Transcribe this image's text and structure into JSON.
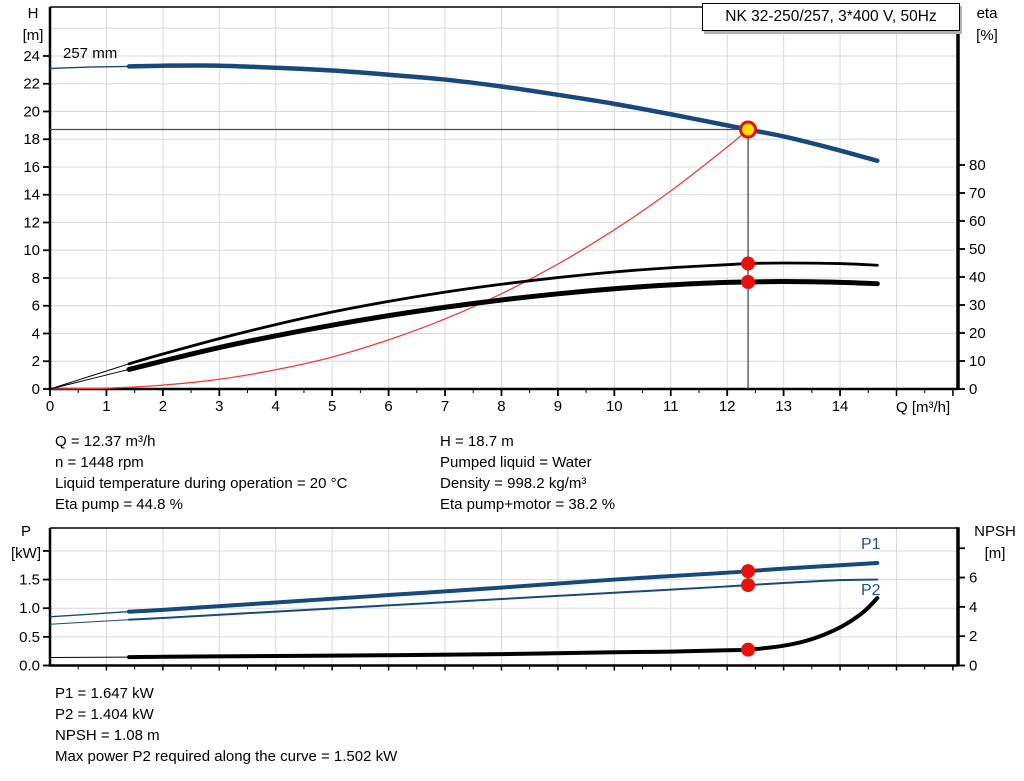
{
  "title_box": {
    "label": "NK 32-250/257, 3*400 V, 50Hz"
  },
  "info_top": {
    "left": [
      "Q = 12.37 m³/h",
      "n = 1448 rpm",
      "Liquid temperature during operation = 20 °C",
      "Eta pump = 44.8 %"
    ],
    "right": [
      "H = 18.7 m",
      "Pumped liquid = Water",
      "Density = 998.2 kg/m³",
      "Eta pump+motor = 38.2 %"
    ]
  },
  "info_bottom": [
    "P1 = 1.647 kW",
    "P2 = 1.404 kW",
    "NPSH = 1.08 m",
    "Max power P2 required along the curve = 1.502 kW"
  ],
  "colors": {
    "curve_blue": "#17497d",
    "label_blue": "#1c548f",
    "dot_red": "#e8110c",
    "system_red": "#f03c3c",
    "duty_yellow": "#ffe000",
    "grid": "#d9d9d9",
    "guide": "#4d4d4d",
    "axis": "#000000"
  },
  "chart_data": [
    {
      "type": "line",
      "title": "NK 32-250/257, 3*400 V, 50Hz",
      "annotation": "257 mm",
      "x_axis": {
        "label": "Q [m³/h]",
        "min": 0,
        "max": 16.09,
        "minor_step": 0.5,
        "ticks": [
          {
            "v": 0,
            "l": "0"
          },
          {
            "v": 1,
            "l": "1"
          },
          {
            "v": 2,
            "l": "2"
          },
          {
            "v": 3,
            "l": "3"
          },
          {
            "v": 4,
            "l": "4"
          },
          {
            "v": 5,
            "l": "5"
          },
          {
            "v": 6,
            "l": "6"
          },
          {
            "v": 7,
            "l": "7"
          },
          {
            "v": 8,
            "l": "8"
          },
          {
            "v": 9,
            "l": "9"
          },
          {
            "v": 10,
            "l": "10"
          },
          {
            "v": 11,
            "l": "11"
          },
          {
            "v": 12,
            "l": "12"
          },
          {
            "v": 13,
            "l": "13"
          },
          {
            "v": 14,
            "l": "14"
          }
        ],
        "ticks_unlabeled": [
          15,
          16
        ],
        "grid": [
          1,
          2,
          3,
          4,
          5,
          6,
          7,
          8,
          9,
          10,
          11,
          12,
          13,
          14,
          15
        ]
      },
      "y_left": {
        "symbol": "H",
        "unit": "[m]",
        "min": 0,
        "max": 27.53,
        "ticks": [
          {
            "v": 0,
            "l": "0"
          },
          {
            "v": 2,
            "l": "2"
          },
          {
            "v": 4,
            "l": "4"
          },
          {
            "v": 6,
            "l": "6"
          },
          {
            "v": 8,
            "l": "8"
          },
          {
            "v": 10,
            "l": "10"
          },
          {
            "v": 12,
            "l": "12"
          },
          {
            "v": 14,
            "l": "14"
          },
          {
            "v": 16,
            "l": "16"
          },
          {
            "v": 18,
            "l": "18"
          },
          {
            "v": 20,
            "l": "20"
          },
          {
            "v": 22,
            "l": "22"
          },
          {
            "v": 24,
            "l": "24"
          }
        ],
        "grid": [
          2,
          4,
          6,
          8,
          10,
          12,
          14,
          16,
          18,
          20,
          22,
          24,
          26
        ]
      },
      "y_right": {
        "symbol": "eta",
        "unit": "[%]",
        "min": 0,
        "max": 136.43,
        "ticks": [
          {
            "v": 0,
            "l": "0"
          },
          {
            "v": 10,
            "l": "10"
          },
          {
            "v": 20,
            "l": "20"
          },
          {
            "v": 30,
            "l": "30"
          },
          {
            "v": 40,
            "l": "40"
          },
          {
            "v": 50,
            "l": "50"
          },
          {
            "v": 60,
            "l": "60"
          },
          {
            "v": 70,
            "l": "70"
          },
          {
            "v": 80,
            "l": "80"
          }
        ]
      },
      "series": [
        {
          "name": "system-curve",
          "axis": "left",
          "color": "#f03c3c",
          "width": 1.3,
          "points": [
            [
              0,
              0
            ],
            [
              1,
              0.06
            ],
            [
              2,
              0.28
            ],
            [
              3,
              0.7
            ],
            [
              4,
              1.39
            ],
            [
              5,
              2.3
            ],
            [
              6,
              3.54
            ],
            [
              7,
              5.05
            ],
            [
              8,
              6.86
            ],
            [
              9,
              9.0
            ],
            [
              10,
              11.47
            ],
            [
              11,
              14.27
            ],
            [
              12,
              17.44
            ],
            [
              12.37,
              18.7
            ]
          ]
        },
        {
          "name": "eta-pump",
          "axis": "right",
          "color": "#000000",
          "width": 2.8,
          "thin_until": 1.4,
          "thin_width": 1,
          "points": [
            [
              0,
              0
            ],
            [
              0.7,
              4.5
            ],
            [
              1.4,
              9
            ],
            [
              2,
              12.5
            ],
            [
              3,
              18
            ],
            [
              4,
              23
            ],
            [
              5,
              27.5
            ],
            [
              6,
              31.3
            ],
            [
              7,
              34.6
            ],
            [
              8,
              37.4
            ],
            [
              9,
              39.8
            ],
            [
              10,
              41.8
            ],
            [
              11,
              43.3
            ],
            [
              12,
              44.4
            ],
            [
              12.37,
              44.8
            ],
            [
              13,
              45.0
            ],
            [
              14,
              44.8
            ],
            [
              14.66,
              44.2
            ]
          ]
        },
        {
          "name": "eta-pump-motor",
          "axis": "right",
          "color": "#000000",
          "width": 5,
          "thin_until": 1.4,
          "thin_width": 1,
          "points": [
            [
              0,
              0
            ],
            [
              0.7,
              3.5
            ],
            [
              1.4,
              7
            ],
            [
              2,
              10
            ],
            [
              3,
              14.8
            ],
            [
              4,
              19
            ],
            [
              5,
              22.8
            ],
            [
              6,
              26.2
            ],
            [
              7,
              29.2
            ],
            [
              8,
              31.8
            ],
            [
              9,
              34
            ],
            [
              10,
              35.8
            ],
            [
              11,
              37.2
            ],
            [
              12,
              38.1
            ],
            [
              12.37,
              38.2
            ],
            [
              13,
              38.4
            ],
            [
              14,
              38.1
            ],
            [
              14.66,
              37.6
            ]
          ]
        },
        {
          "name": "head-curve",
          "axis": "left",
          "color": "#17497d",
          "width": 4.5,
          "thin_until": 1.4,
          "thin_width": 1.4,
          "points": [
            [
              0,
              23.1
            ],
            [
              0.7,
              23.2
            ],
            [
              1.4,
              23.25
            ],
            [
              2,
              23.3
            ],
            [
              3,
              23.3
            ],
            [
              4,
              23.15
            ],
            [
              5,
              22.95
            ],
            [
              6,
              22.65
            ],
            [
              7,
              22.3
            ],
            [
              8,
              21.8
            ],
            [
              9,
              21.2
            ],
            [
              10,
              20.55
            ],
            [
              11,
              19.8
            ],
            [
              12,
              19.0
            ],
            [
              12.37,
              18.7
            ],
            [
              13,
              18.2
            ],
            [
              13.8,
              17.4
            ],
            [
              14.66,
              16.45
            ]
          ]
        }
      ],
      "guides": {
        "q": 12.37,
        "h": 18.7
      },
      "duty_point": {
        "q": 12.37,
        "h": 18.7
      },
      "dots": [
        {
          "axis": "right",
          "q": 12.37,
          "v": 44.8
        },
        {
          "axis": "right",
          "q": 12.37,
          "v": 38.2
        }
      ]
    },
    {
      "type": "line",
      "title": "",
      "x_axis": {
        "label": "",
        "min": 0,
        "max": 16.09,
        "minor_step": 0.5,
        "ticks": [],
        "ticks_unlabeled": [
          1,
          2,
          3,
          4,
          5,
          6,
          7,
          8,
          9,
          10,
          11,
          12,
          13,
          14,
          15,
          16
        ],
        "grid": [
          1,
          2,
          3,
          4,
          5,
          6,
          7,
          8,
          9,
          10,
          11,
          12,
          13,
          14,
          15
        ]
      },
      "y_left": {
        "symbol": "P",
        "unit": "[kW]",
        "min": 0,
        "max": 2.4,
        "ticks": [
          {
            "v": 0,
            "l": "0.0"
          },
          {
            "v": 0.5,
            "l": "0.5"
          },
          {
            "v": 1,
            "l": "1.0"
          },
          {
            "v": 1.5,
            "l": "1.5"
          }
        ],
        "ticks_unlabeled": [
          2
        ],
        "grid": [
          0.5,
          1,
          1.5,
          2
        ]
      },
      "y_right": {
        "symbol": "NPSH",
        "unit": "[m]",
        "min": 0,
        "max": 9.38,
        "ticks": [
          {
            "v": 0,
            "l": "0"
          },
          {
            "v": 2,
            "l": "2"
          },
          {
            "v": 4,
            "l": "4"
          },
          {
            "v": 6,
            "l": "6"
          }
        ],
        "ticks_unlabeled": [
          8
        ]
      },
      "labels": {
        "p1": "P1",
        "p2": "P2"
      },
      "series": [
        {
          "name": "p2-power",
          "axis": "left",
          "color": "#17497d",
          "width": 2,
          "thin_until": 1.4,
          "thin_width": 1,
          "points": [
            [
              0,
              0.72
            ],
            [
              1.4,
              0.8
            ],
            [
              2,
              0.83
            ],
            [
              4,
              0.94
            ],
            [
              6,
              1.05
            ],
            [
              8,
              1.16
            ],
            [
              10,
              1.27
            ],
            [
              12,
              1.38
            ],
            [
              12.37,
              1.404
            ],
            [
              13,
              1.44
            ],
            [
              14,
              1.49
            ],
            [
              14.66,
              1.5
            ]
          ]
        },
        {
          "name": "p1-power",
          "axis": "left",
          "color": "#17497d",
          "width": 4,
          "thin_until": 1.4,
          "thin_width": 1.3,
          "points": [
            [
              0,
              0.85
            ],
            [
              1.4,
              0.94
            ],
            [
              2,
              0.97
            ],
            [
              4,
              1.1
            ],
            [
              6,
              1.23
            ],
            [
              8,
              1.36
            ],
            [
              10,
              1.5
            ],
            [
              12,
              1.62
            ],
            [
              12.37,
              1.647
            ],
            [
              13,
              1.69
            ],
            [
              14,
              1.75
            ],
            [
              14.66,
              1.79
            ]
          ]
        },
        {
          "name": "npsh-curve",
          "axis": "right",
          "color": "#000000",
          "width": 4,
          "thin_until": 1.4,
          "thin_width": 1,
          "points": [
            [
              0,
              0.55
            ],
            [
              1.4,
              0.57
            ],
            [
              2,
              0.6
            ],
            [
              4,
              0.65
            ],
            [
              6,
              0.7
            ],
            [
              8,
              0.78
            ],
            [
              10,
              0.9
            ],
            [
              11,
              0.95
            ],
            [
              12,
              1.04
            ],
            [
              12.37,
              1.08
            ],
            [
              13,
              1.35
            ],
            [
              13.5,
              1.8
            ],
            [
              14,
              2.6
            ],
            [
              14.4,
              3.6
            ],
            [
              14.66,
              4.6
            ]
          ]
        }
      ],
      "dots": [
        {
          "axis": "left",
          "q": 12.37,
          "v": 1.647
        },
        {
          "axis": "left",
          "q": 12.37,
          "v": 1.404
        },
        {
          "axis": "right",
          "q": 12.37,
          "v": 1.08
        }
      ]
    }
  ]
}
